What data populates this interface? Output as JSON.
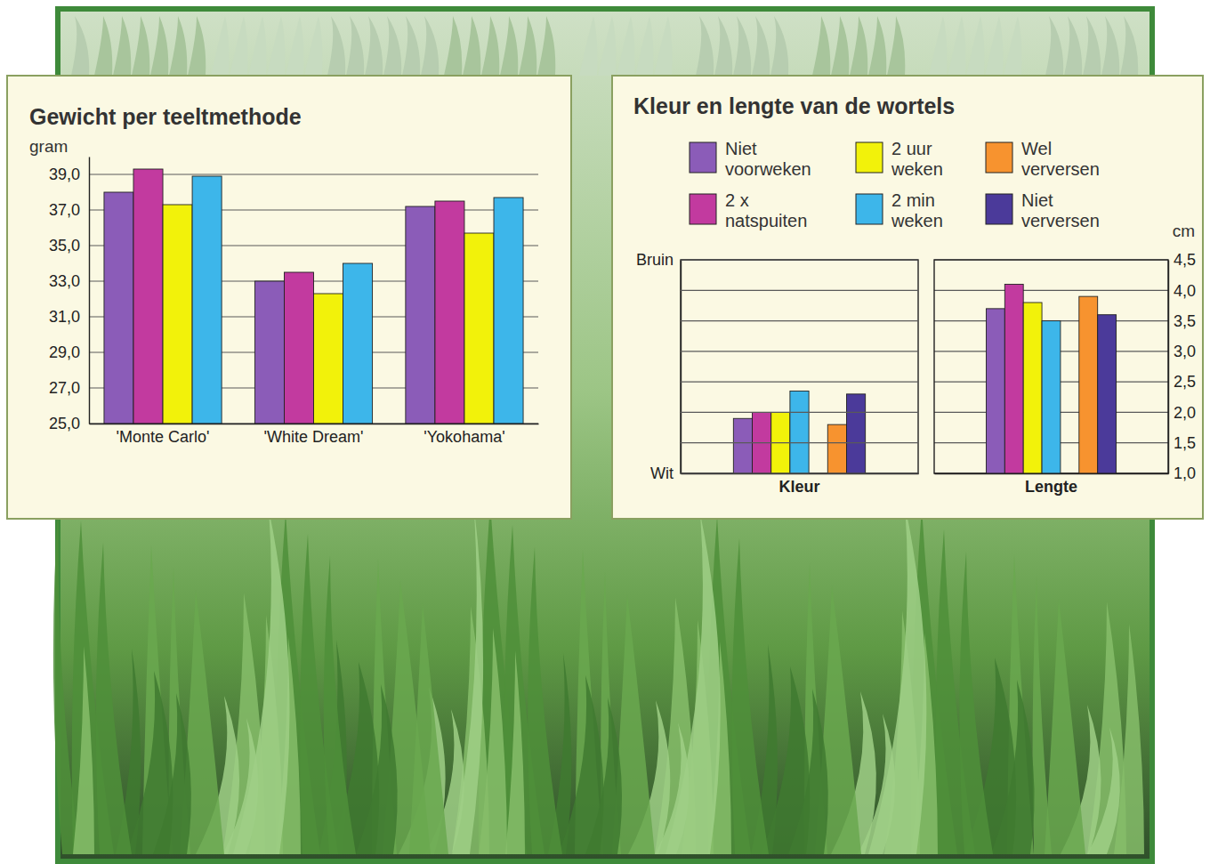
{
  "chart_data": [
    {
      "type": "bar",
      "title": "Gewicht per teeltmethode",
      "ylabel": "gram",
      "categories": [
        "'Monte Carlo'",
        "'White Dream'",
        "'Yokohama'"
      ],
      "series": [
        {
          "name": "Niet voorweken",
          "color": "#8b5cb8",
          "values": [
            38.0,
            33.0,
            37.2
          ]
        },
        {
          "name": "2 x natspuiten",
          "color": "#c23a9f",
          "values": [
            39.3,
            33.5,
            37.5
          ]
        },
        {
          "name": "2 uur weken",
          "color": "#f2f20a",
          "values": [
            37.3,
            32.3,
            35.7
          ]
        },
        {
          "name": "2 min weken",
          "color": "#3db6ea",
          "values": [
            38.9,
            34.0,
            37.7
          ]
        }
      ],
      "ylim": [
        25,
        40
      ],
      "yticks": [
        {
          "value": 25,
          "label": "25,0"
        },
        {
          "value": 27,
          "label": "27,0"
        },
        {
          "value": 29,
          "label": "29,0"
        },
        {
          "value": 31,
          "label": "31,0"
        },
        {
          "value": 33,
          "label": "33,0"
        },
        {
          "value": 35,
          "label": "35,0"
        },
        {
          "value": 37,
          "label": "37,0"
        },
        {
          "value": 39,
          "label": "39,0"
        }
      ],
      "grid": true
    },
    {
      "type": "bar",
      "title": "Kleur en lengte van de wortels",
      "categories": [
        "Kleur"
      ],
      "series": [
        {
          "name": "Niet voorweken",
          "color": "#8b5cb8",
          "values": [
            1.8
          ]
        },
        {
          "name": "2 x natspuiten",
          "color": "#c23a9f",
          "values": [
            2.0
          ]
        },
        {
          "name": "2 uur weken",
          "color": "#f2f20a",
          "values": [
            2.0
          ]
        },
        {
          "name": "2 min weken",
          "color": "#3db6ea",
          "values": [
            2.7
          ]
        },
        {
          "name": "Wel verversen",
          "color": "#f7932f",
          "values": [
            1.6
          ]
        },
        {
          "name": "Niet verversen",
          "color": "#4b3a9a",
          "values": [
            2.6
          ]
        }
      ],
      "ylim": [
        0,
        7
      ],
      "yticks": [
        {
          "value": 0,
          "label": "Wit"
        },
        {
          "value": 7,
          "label": "Bruin"
        }
      ],
      "grid": true,
      "legend": "top"
    },
    {
      "type": "bar",
      "ylabel": "cm",
      "categories": [
        "Lengte"
      ],
      "series": [
        {
          "name": "Niet voorweken",
          "color": "#8b5cb8",
          "values": [
            3.7
          ]
        },
        {
          "name": "2 x natspuiten",
          "color": "#c23a9f",
          "values": [
            4.1
          ]
        },
        {
          "name": "2 uur weken",
          "color": "#f2f20a",
          "values": [
            3.8
          ]
        },
        {
          "name": "2 min weken",
          "color": "#3db6ea",
          "values": [
            3.5
          ]
        },
        {
          "name": "Wel verversen",
          "color": "#f7932f",
          "values": [
            3.9
          ]
        },
        {
          "name": "Niet verversen",
          "color": "#4b3a9a",
          "values": [
            3.6
          ]
        }
      ],
      "ylim": [
        1.0,
        4.5
      ],
      "yticks": [
        {
          "value": 1.0,
          "label": "1,0"
        },
        {
          "value": 1.5,
          "label": "1,5"
        },
        {
          "value": 2.0,
          "label": "2,0"
        },
        {
          "value": 2.5,
          "label": "2,5"
        },
        {
          "value": 3.0,
          "label": "3,0"
        },
        {
          "value": 3.5,
          "label": "3,5"
        },
        {
          "value": 4.0,
          "label": "4,0"
        },
        {
          "value": 4.5,
          "label": "4,5"
        }
      ],
      "grid": true
    }
  ]
}
